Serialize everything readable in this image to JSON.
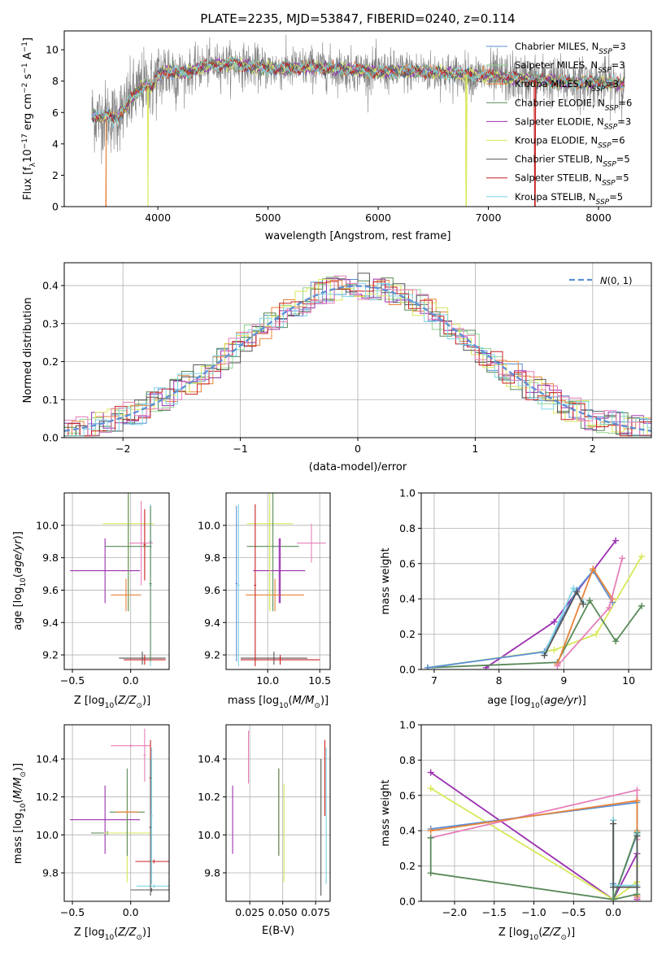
{
  "figure": {
    "title": "PLATE=2235, MJD=53847, FIBERID=0240, z=0.114"
  },
  "colors": {
    "Chabrier MILES": "#5b8fd6",
    "Salpeter MILES": "#8fd58f",
    "Kroupa MILES": "#e8833a",
    "Chabrier ELODIE": "#5a8a5a",
    "Salpeter ELODIE": "#9b30b0",
    "Kroupa ELODIE": "#d8e85a",
    "Chabrier STELIB": "#555555",
    "Salpeter STELIB": "#c82020",
    "Kroupa STELIB": "#7fd4e6",
    "Pink": "#e67fb8"
  },
  "chart_data": [
    {
      "id": "spectrum",
      "type": "line",
      "xlabel": "wavelength [Angstrom, rest frame]",
      "ylabel": "Flux [f_λ10^-17 erg cm^-2 s^-1 A^-1]",
      "xlim": [
        3150,
        8480
      ],
      "ylim": [
        0,
        11.2
      ],
      "xticks": [
        4000,
        5000,
        6000,
        7000,
        8000
      ],
      "yticks": [
        0,
        2,
        4,
        6,
        8,
        10
      ],
      "grid": false,
      "legend_position": "top-right",
      "legend": [
        {
          "name": "Chabrier MILES",
          "subscript": "SSP",
          "n": "3"
        },
        {
          "name": "Salpeter MILES",
          "subscript": "SSP",
          "n": "3"
        },
        {
          "name": "Kroupa MILES",
          "subscript": "SSP",
          "n": "3"
        },
        {
          "name": "Chabrier ELODIE",
          "subscript": "SSP",
          "n": "6"
        },
        {
          "name": "Salpeter ELODIE",
          "subscript": "SSP",
          "n": "3"
        },
        {
          "name": "Kroupa ELODIE",
          "subscript": "SSP",
          "n": "6"
        },
        {
          "name": "Chabrier STELIB",
          "subscript": "SSP",
          "n": "5"
        },
        {
          "name": "Salpeter STELIB",
          "subscript": "SSP",
          "n": "5"
        },
        {
          "name": "Kroupa STELIB",
          "subscript": "SSP",
          "n": "5"
        }
      ],
      "model_continuum": {
        "x": [
          3400,
          3450,
          3500,
          3550,
          3600,
          3650,
          3700,
          3750,
          3800,
          3850,
          3900,
          3950,
          4000,
          4100,
          4200,
          4300,
          4400,
          4500,
          4600,
          4800,
          5000,
          5200,
          5400,
          5600,
          5800,
          6000,
          6200,
          6400,
          6600,
          6800,
          7000,
          7200,
          7400,
          7600,
          7800,
          8000,
          8240
        ],
        "y": [
          5.9,
          5.7,
          5.7,
          5.8,
          5.6,
          5.9,
          6.2,
          6.8,
          7.2,
          7.6,
          7.8,
          7.6,
          8.3,
          8.7,
          8.5,
          8.6,
          8.9,
          9.0,
          9.1,
          9.0,
          8.8,
          8.8,
          8.9,
          8.8,
          8.7,
          8.6,
          8.6,
          8.6,
          8.5,
          8.4,
          8.3,
          8.2,
          8.1,
          8.0,
          7.9,
          7.9,
          7.8
        ]
      },
      "observed_noise_amplitude": 1.6,
      "model_dropouts": [
        {
          "series": "Kroupa MILES",
          "x_start": 3150,
          "x_end": 3530
        },
        {
          "series": "Kroupa ELODIE",
          "x_start": 3905,
          "x_end": 3915
        },
        {
          "series": "Kroupa ELODIE",
          "x_start": 6795,
          "x_end": 6805
        },
        {
          "series": "Salpeter STELIB",
          "x_start": 7420,
          "x_end": 7430
        }
      ]
    },
    {
      "id": "residuals",
      "type": "step-histogram",
      "xlabel": "(data-model)/error",
      "ylabel": "Normed distribution",
      "xlim": [
        -2.5,
        2.5
      ],
      "ylim": [
        0,
        0.46
      ],
      "xticks": [
        -2,
        -1,
        0,
        1,
        2
      ],
      "yticks": [
        0.0,
        0.1,
        0.2,
        0.3,
        0.4
      ],
      "grid": true,
      "bin_width": 0.1,
      "reference_curve": {
        "name": "N(0,1)",
        "mu": 0,
        "sigma": 1
      },
      "legend_position": "top-right",
      "bin_jitter": 0.035
    },
    {
      "id": "age-vs-Z",
      "type": "errorbar",
      "xlabel": "Z [log10(Z/Z⊙)]",
      "ylabel": "age [log10(age/yr)]",
      "xlim": [
        -0.57,
        0.33
      ],
      "ylim": [
        9.11,
        10.2
      ],
      "xticks": [
        -0.5,
        0.0
      ],
      "yticks": [
        9.2,
        9.4,
        9.6,
        9.8,
        10.0
      ],
      "grid": true,
      "points": [
        {
          "series": "Salpeter ELODIE",
          "x": -0.22,
          "xerr": 0.3,
          "y": 9.72,
          "yerr": 0.2
        },
        {
          "series": "Kroupa ELODIE",
          "x": -0.02,
          "xerr": 0.22,
          "y": 10.01,
          "yerr": 0.54
        },
        {
          "series": "Chabrier ELODIE",
          "x": -0.02,
          "xerr": 0.2,
          "y": 9.87,
          "yerr": 0.4
        },
        {
          "series": "Pink",
          "x": 0.09,
          "xerr": 0.1,
          "y": 9.89,
          "yerr": 0.26
        },
        {
          "series": "Kroupa MILES",
          "x": -0.04,
          "xerr": 0.13,
          "y": 9.57,
          "yerr": 0.1
        },
        {
          "series": "Chabrier MILES",
          "x": 0.17,
          "xerr": 0.01,
          "y": 9.9,
          "yerr": 0.22
        },
        {
          "series": "Chabrier STELIB",
          "x": 0.1,
          "xerr": 0.2,
          "y": 9.18,
          "yerr": 0.04
        },
        {
          "series": "Salpeter STELIB",
          "x": 0.12,
          "xerr": 0.18,
          "y": 9.17,
          "yerr": 0.03
        },
        {
          "series": "Kroupa STELIB",
          "x": 0.17,
          "xerr": 0.01,
          "y": 9.63,
          "yerr": 0.5
        },
        {
          "series": "Chabrier ELODIE",
          "x": 0.17,
          "xerr": 0.01,
          "y": 9.64,
          "yerr": 0.48
        },
        {
          "series": "Salpeter STELIB",
          "x": 0.12,
          "xerr": 0.01,
          "y": 9.88,
          "yerr": 0.22
        }
      ]
    },
    {
      "id": "age-vs-mass",
      "type": "errorbar",
      "xlabel": "mass [log10(M/M⊙)]",
      "ylabel": "",
      "xlim": [
        9.6,
        10.6
      ],
      "ylim": [
        9.11,
        10.2
      ],
      "xticks": [
        10.0,
        10.5
      ],
      "yticks": [
        9.2,
        9.4,
        9.6,
        9.8,
        10.0
      ],
      "grid": true,
      "points": [
        {
          "series": "Kroupa ELODIE",
          "x": 10.02,
          "xerr": 0.22,
          "y": 10.01,
          "yerr": 0.54
        },
        {
          "series": "Chabrier ELODIE",
          "x": 10.05,
          "xerr": 0.25,
          "y": 9.87,
          "yerr": 0.4
        },
        {
          "series": "Salpeter ELODIE",
          "x": 10.11,
          "xerr": 0.25,
          "y": 9.72,
          "yerr": 0.2
        },
        {
          "series": "Kroupa MILES",
          "x": 10.07,
          "xerr": 0.28,
          "y": 9.57,
          "yerr": 0.1
        },
        {
          "series": "Pink",
          "x": 10.42,
          "xerr": 0.14,
          "y": 9.89,
          "yerr": 0.12
        },
        {
          "series": "Chabrier STELIB",
          "x": 10.06,
          "xerr": 0.32,
          "y": 9.18,
          "yerr": 0.04
        },
        {
          "series": "Salpeter STELIB",
          "x": 10.12,
          "xerr": 0.38,
          "y": 9.17,
          "yerr": 0.03
        },
        {
          "series": "Kroupa STELIB",
          "x": 9.72,
          "xerr": 0.01,
          "y": 9.63,
          "yerr": 0.5
        },
        {
          "series": "Chabrier MILES",
          "x": 9.7,
          "xerr": 0.01,
          "y": 9.64,
          "yerr": 0.48
        },
        {
          "series": "Salpeter STELIB",
          "x": 9.88,
          "xerr": 0.01,
          "y": 9.63,
          "yerr": 0.5
        },
        {
          "series": "Kroupa ELODIE",
          "x": 10.02,
          "xerr": 0.01,
          "y": 9.8,
          "yerr": 0.32
        },
        {
          "series": "Salpeter ELODIE",
          "x": 10.12,
          "xerr": 0.01,
          "y": 9.72,
          "yerr": 0.2
        }
      ]
    },
    {
      "id": "weight-vs-age",
      "type": "line",
      "xlabel": "age [log10(age/yr)]",
      "ylabel": "mass weight",
      "xlim": [
        6.8,
        10.35
      ],
      "ylim": [
        0,
        1.0
      ],
      "xticks": [
        7,
        8,
        9,
        10
      ],
      "yticks": [
        0.0,
        0.2,
        0.4,
        0.6,
        0.8,
        1.0
      ],
      "grid": true,
      "series": [
        {
          "name": "Salpeter ELODIE",
          "x": [
            7.8,
            8.85,
            9.8
          ],
          "y": [
            0.01,
            0.27,
            0.73
          ]
        },
        {
          "name": "Kroupa ELODIE",
          "x": [
            6.9,
            8.85,
            9.5,
            10.2
          ],
          "y": [
            0.01,
            0.11,
            0.2,
            0.64
          ]
        },
        {
          "name": "Chabrier ELODIE",
          "x": [
            6.9,
            8.9,
            9.4,
            9.8,
            10.2
          ],
          "y": [
            0.01,
            0.04,
            0.39,
            0.16,
            0.36
          ]
        },
        {
          "name": "Chabrier MILES",
          "x": [
            6.9,
            8.7,
            9.2,
            9.45,
            9.75
          ],
          "y": [
            0.01,
            0.1,
            0.45,
            0.56,
            0.38
          ]
        },
        {
          "name": "Kroupa MILES",
          "x": [
            8.9,
            9.45,
            9.75
          ],
          "y": [
            0.03,
            0.57,
            0.4
          ]
        },
        {
          "name": "Pink",
          "x": [
            8.9,
            9.7,
            9.9
          ],
          "y": [
            0.02,
            0.35,
            0.63
          ]
        },
        {
          "name": "Kroupa STELIB",
          "x": [
            8.7,
            9.15,
            9.3
          ],
          "y": [
            0.09,
            0.46,
            0.38
          ]
        },
        {
          "name": "Chabrier STELIB",
          "x": [
            8.7,
            9.2,
            9.3
          ],
          "y": [
            0.08,
            0.44,
            0.37
          ]
        }
      ]
    },
    {
      "id": "mass-vs-Z",
      "type": "errorbar",
      "xlabel": "Z [log10(Z/Z⊙)]",
      "ylabel": "mass [log10(M/M⊙)]",
      "xlim": [
        -0.57,
        0.33
      ],
      "ylim": [
        9.65,
        10.58
      ],
      "xticks": [
        -0.5,
        0.0
      ],
      "yticks": [
        9.8,
        10.0,
        10.2,
        10.4
      ],
      "grid": true,
      "points": [
        {
          "series": "Salpeter ELODIE",
          "x": -0.22,
          "xerr": 0.3,
          "y": 10.08,
          "yerr": 0.18
        },
        {
          "series": "Chabrier ELODIE",
          "x": -0.2,
          "xerr": 0.14,
          "y": 10.01,
          "yerr": 0.01
        },
        {
          "series": "Kroupa ELODIE",
          "x": -0.03,
          "xerr": 0.2,
          "y": 10.01,
          "yerr": 0.26
        },
        {
          "series": "Chabrier ELODIE",
          "x": -0.03,
          "xerr": 0.15,
          "y": 10.12,
          "yerr": 0.23
        },
        {
          "series": "Kroupa MILES",
          "x": -0.03,
          "xerr": 0.1,
          "y": 10.12,
          "yerr": 0.01
        },
        {
          "series": "Pink",
          "x": 0.0,
          "xerr": 0.17,
          "y": 10.47,
          "yerr": 0.01
        },
        {
          "series": "Pink",
          "x": 0.12,
          "xerr": 0.01,
          "y": 10.42,
          "yerr": 0.14
        },
        {
          "series": "Salpeter STELIB",
          "x": 0.17,
          "xerr": 0.01,
          "y": 10.3,
          "yerr": 0.2
        },
        {
          "series": "Salpeter STELIB",
          "x": 0.2,
          "xerr": 0.16,
          "y": 9.86,
          "yerr": 0.01
        },
        {
          "series": "Kroupa STELIB",
          "x": 0.2,
          "xerr": 0.15,
          "y": 9.73,
          "yerr": 0.01
        },
        {
          "series": "Chabrier STELIB",
          "x": 0.18,
          "xerr": 0.18,
          "y": 9.71,
          "yerr": 0.01
        },
        {
          "series": "Chabrier STELIB",
          "x": 0.17,
          "xerr": 0.01,
          "y": 10.04,
          "yerr": 0.36
        },
        {
          "series": "Kroupa STELIB",
          "x": 0.18,
          "xerr": 0.01,
          "y": 10.1,
          "yerr": 0.36
        }
      ]
    },
    {
      "id": "mass-vs-EBV",
      "type": "errorbar",
      "xlabel": "E(B-V)",
      "ylabel": "",
      "xlim": [
        0.007,
        0.086
      ],
      "ylim": [
        9.65,
        10.58
      ],
      "xticks": [
        0.025,
        0.05,
        0.075
      ],
      "yticks": [
        9.8,
        10.0,
        10.2,
        10.4
      ],
      "grid": true,
      "points": [
        {
          "series": "Salpeter ELODIE",
          "x": 0.012,
          "xerr": 0,
          "y": 10.08,
          "yerr": 0.18
        },
        {
          "series": "Pink",
          "x": 0.024,
          "xerr": 0,
          "y": 10.41,
          "yerr": 0.14
        },
        {
          "series": "Kroupa MILES",
          "x": 0.047,
          "xerr": 0,
          "y": 10.12,
          "yerr": 0.23
        },
        {
          "series": "Chabrier ELODIE",
          "x": 0.047,
          "xerr": 0,
          "y": 10.12,
          "yerr": 0.23
        },
        {
          "series": "Kroupa ELODIE",
          "x": 0.051,
          "xerr": 0,
          "y": 10.01,
          "yerr": 0.26
        },
        {
          "series": "Chabrier STELIB",
          "x": 0.079,
          "xerr": 0,
          "y": 10.04,
          "yerr": 0.36
        },
        {
          "series": "Salpeter STELIB",
          "x": 0.082,
          "xerr": 0,
          "y": 10.3,
          "yerr": 0.2
        },
        {
          "series": "Kroupa STELIB",
          "x": 0.083,
          "xerr": 0,
          "y": 10.1,
          "yerr": 0.36
        }
      ]
    },
    {
      "id": "weight-vs-Z",
      "type": "line",
      "xlabel": "Z [log10(Z/Z⊙)]",
      "ylabel": "mass weight",
      "xlim": [
        -2.42,
        0.48
      ],
      "ylim": [
        0,
        1.0
      ],
      "xticks": [
        -2.0,
        -1.5,
        -1.0,
        -0.5,
        0.0
      ],
      "yticks": [
        0.0,
        0.2,
        0.4,
        0.6,
        0.8,
        1.0
      ],
      "grid": true,
      "series": [
        {
          "name": "Salpeter ELODIE",
          "x": [
            -2.3,
            0.0,
            0.3,
            0.3
          ],
          "y": [
            0.73,
            0.01,
            0.27,
            0.01
          ]
        },
        {
          "name": "Kroupa ELODIE",
          "x": [
            -2.3,
            0.0,
            0.3,
            0.3
          ],
          "y": [
            0.64,
            0.01,
            0.11,
            0.2
          ]
        },
        {
          "name": "Pink",
          "x": [
            -2.3,
            0.3,
            0.3,
            0.3
          ],
          "y": [
            0.36,
            0.63,
            0.35,
            0.02
          ]
        },
        {
          "name": "Chabrier MILES",
          "x": [
            -2.3,
            0.3,
            0.3,
            0.0,
            0.0
          ],
          "y": [
            0.41,
            0.56,
            0.38,
            0.01,
            0.1
          ]
        },
        {
          "name": "Kroupa MILES",
          "x": [
            -2.3,
            0.3,
            0.3,
            0.3
          ],
          "y": [
            0.4,
            0.57,
            0.4,
            0.03
          ]
        },
        {
          "name": "Chabrier ELODIE",
          "x": [
            -2.3,
            -2.3,
            0.0,
            0.3,
            0.3,
            0.0,
            0.0
          ],
          "y": [
            0.36,
            0.16,
            0.01,
            0.04,
            0.39,
            0.01,
            0.46
          ]
        },
        {
          "name": "Kroupa STELIB",
          "x": [
            0.0,
            0.0,
            0.3,
            0.3
          ],
          "y": [
            0.46,
            0.09,
            0.09,
            0.38
          ]
        },
        {
          "name": "Chabrier STELIB",
          "x": [
            0.0,
            0.0,
            0.3,
            0.3
          ],
          "y": [
            0.44,
            0.08,
            0.08,
            0.37
          ]
        }
      ]
    }
  ]
}
